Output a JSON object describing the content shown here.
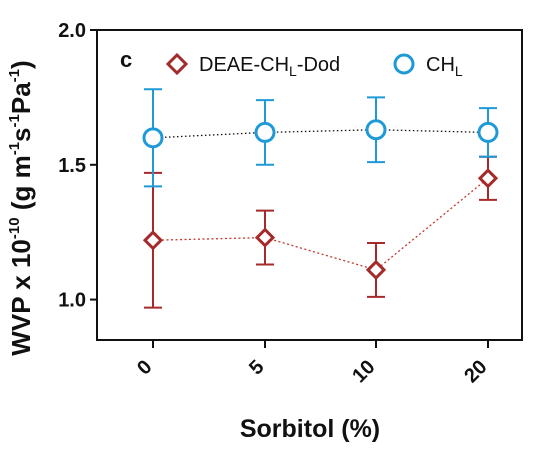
{
  "chart_data": {
    "type": "line",
    "panel_label": "c",
    "ylabel": {
      "prefix": "WVP x 10",
      "prefix_exp": "-10",
      "unit_open": " (g m",
      "unit_m_exp": "-1",
      "unit_s": "s",
      "unit_s_exp": "-1",
      "unit_pa": "Pa",
      "unit_pa_exp": "-1",
      "unit_close": ")"
    },
    "xlabel": "Sorbitol (%)",
    "categories": [
      "0",
      "5",
      "10",
      "20"
    ],
    "ylim": [
      0.85,
      2.0
    ],
    "yticks": [
      "1.0",
      "1.5",
      "2.0"
    ],
    "series": [
      {
        "name_main": "DEAE-CH",
        "name_sub": "L",
        "name_suffix": "-Dod",
        "marker": "diamond",
        "color": "#a52a2a",
        "values": [
          1.22,
          1.23,
          1.11,
          1.45
        ],
        "errors": [
          0.25,
          0.1,
          0.1,
          0.08
        ]
      },
      {
        "name_main": "CH",
        "name_sub": "L",
        "name_suffix": "",
        "marker": "circle",
        "color": "#1e9ad6",
        "values": [
          1.6,
          1.62,
          1.63,
          1.62
        ],
        "errors": [
          0.18,
          0.12,
          0.12,
          0.09
        ]
      }
    ],
    "grid": false,
    "legend_position": "top"
  }
}
